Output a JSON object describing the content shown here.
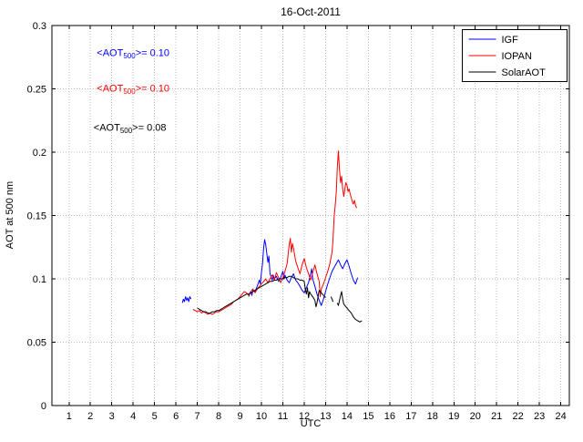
{
  "chart_data": {
    "type": "line",
    "title": "16-Oct-2011",
    "xlabel": "UTC",
    "ylabel": "AOT at 500 nm",
    "xlim": [
      0.2,
      24.4
    ],
    "ylim": [
      0,
      0.3
    ],
    "x_ticks": [
      1,
      2,
      3,
      4,
      5,
      6,
      7,
      8,
      9,
      10,
      11,
      12,
      13,
      14,
      15,
      16,
      17,
      18,
      19,
      20,
      21,
      22,
      23,
      24
    ],
    "y_ticks": [
      0,
      0.05,
      0.1,
      0.15,
      0.2,
      0.25,
      0.3
    ],
    "y_tick_labels": [
      "0",
      "0.05",
      "0.1",
      "0.15",
      "0.2",
      "0.25",
      "0.3"
    ],
    "grid": true,
    "legend_position": "top-right",
    "colors": {
      "igf": "#0000ff",
      "iopan": "#ff0000",
      "solaraot": "#000000",
      "axis": "#000000",
      "grid": "#b8b8b8"
    },
    "series": [
      {
        "name": "IGF",
        "color": "#0000ff",
        "points": [
          [
            6.3,
            0.081
          ],
          [
            6.35,
            0.084
          ],
          [
            6.4,
            0.082
          ],
          [
            6.45,
            0.086
          ],
          [
            6.5,
            0.083
          ],
          [
            6.55,
            0.085
          ],
          [
            6.6,
            0.082
          ],
          [
            6.65,
            0.086
          ],
          [
            6.7,
            0.084
          ],
          null,
          [
            9.4,
            0.086
          ],
          [
            9.5,
            0.09
          ],
          [
            9.55,
            0.087
          ],
          [
            9.6,
            0.091
          ],
          [
            9.7,
            0.09
          ],
          [
            9.8,
            0.094
          ],
          [
            9.9,
            0.099
          ],
          [
            9.95,
            0.096
          ],
          [
            10.0,
            0.105
          ],
          [
            10.05,
            0.112
          ],
          [
            10.1,
            0.124
          ],
          [
            10.15,
            0.131
          ],
          [
            10.2,
            0.127
          ],
          [
            10.25,
            0.12
          ],
          [
            10.3,
            0.113
          ],
          [
            10.35,
            0.118
          ],
          [
            10.4,
            0.104
          ],
          [
            10.5,
            0.099
          ],
          [
            10.55,
            0.103
          ],
          [
            10.6,
            0.1
          ],
          [
            10.7,
            0.102
          ],
          [
            10.8,
            0.098
          ],
          [
            10.9,
            0.101
          ],
          [
            11.0,
            0.106
          ],
          [
            11.05,
            0.1
          ],
          [
            11.1,
            0.103
          ],
          [
            11.2,
            0.099
          ],
          [
            11.3,
            0.097
          ],
          [
            11.4,
            0.101
          ],
          [
            11.5,
            0.104
          ],
          [
            11.6,
            0.099
          ],
          [
            11.7,
            0.097
          ],
          [
            11.8,
            0.094
          ],
          [
            11.9,
            0.091
          ],
          [
            12.0,
            0.089
          ],
          [
            12.1,
            0.093
          ],
          [
            12.2,
            0.097
          ],
          [
            12.3,
            0.104
          ],
          [
            12.35,
            0.108
          ],
          [
            12.4,
            0.1
          ],
          [
            12.5,
            0.094
          ],
          [
            12.6,
            0.088
          ],
          [
            12.7,
            0.083
          ],
          [
            12.8,
            0.079
          ],
          [
            12.9,
            0.084
          ],
          [
            13.0,
            0.09
          ],
          [
            13.1,
            0.096
          ],
          [
            13.2,
            0.101
          ],
          [
            13.3,
            0.106
          ],
          [
            13.4,
            0.109
          ],
          [
            13.5,
            0.112
          ],
          [
            13.6,
            0.115
          ],
          [
            13.7,
            0.111
          ],
          [
            13.8,
            0.108
          ],
          [
            13.9,
            0.112
          ],
          [
            14.0,
            0.115
          ],
          [
            14.1,
            0.11
          ],
          [
            14.2,
            0.104
          ],
          [
            14.3,
            0.099
          ],
          [
            14.4,
            0.096
          ],
          [
            14.5,
            0.101
          ]
        ]
      },
      {
        "name": "IOPAN",
        "color": "#ff0000",
        "points": [
          [
            6.8,
            0.076
          ],
          [
            6.9,
            0.075
          ],
          [
            7.0,
            0.074
          ],
          [
            7.1,
            0.075
          ],
          [
            7.2,
            0.073
          ],
          [
            7.3,
            0.074
          ],
          [
            7.4,
            0.073
          ],
          [
            7.5,
            0.072
          ],
          [
            7.6,
            0.073
          ],
          [
            7.7,
            0.072
          ],
          [
            7.8,
            0.073
          ],
          [
            7.9,
            0.074
          ],
          [
            8.0,
            0.074
          ],
          [
            8.1,
            0.075
          ],
          [
            8.2,
            0.076
          ],
          [
            8.3,
            0.077
          ],
          [
            8.4,
            0.078
          ],
          [
            8.5,
            0.079
          ],
          [
            8.6,
            0.08
          ],
          [
            8.7,
            0.082
          ],
          [
            8.8,
            0.083
          ],
          [
            8.9,
            0.084
          ],
          [
            9.0,
            0.086
          ],
          [
            9.1,
            0.088
          ],
          [
            9.2,
            0.09
          ],
          [
            9.3,
            0.089
          ],
          [
            9.4,
            0.087
          ],
          [
            9.5,
            0.09
          ],
          [
            9.6,
            0.092
          ],
          [
            9.7,
            0.089
          ],
          [
            9.8,
            0.092
          ],
          [
            9.9,
            0.094
          ],
          [
            10.0,
            0.096
          ],
          [
            10.1,
            0.098
          ],
          [
            10.2,
            0.1
          ],
          [
            10.3,
            0.097
          ],
          [
            10.4,
            0.1
          ],
          [
            10.5,
            0.103
          ],
          [
            10.6,
            0.099
          ],
          [
            10.7,
            0.105
          ],
          [
            10.8,
            0.101
          ],
          [
            10.9,
            0.097
          ],
          [
            11.0,
            0.101
          ],
          [
            11.1,
            0.106
          ],
          [
            11.2,
            0.112
          ],
          [
            11.25,
            0.12
          ],
          [
            11.3,
            0.127
          ],
          [
            11.35,
            0.132
          ],
          [
            11.4,
            0.121
          ],
          [
            11.45,
            0.128
          ],
          [
            11.5,
            0.124
          ],
          [
            11.6,
            0.114
          ],
          [
            11.7,
            0.109
          ],
          [
            11.8,
            0.104
          ],
          [
            11.9,
            0.111
          ],
          [
            12.0,
            0.116
          ],
          [
            12.1,
            0.109
          ],
          [
            12.2,
            0.104
          ],
          [
            12.3,
            0.099
          ],
          [
            12.4,
            0.105
          ],
          [
            12.5,
            0.111
          ],
          [
            12.6,
            0.104
          ],
          [
            12.7,
            0.098
          ],
          [
            12.75,
            0.086
          ],
          [
            12.8,
            0.092
          ],
          [
            12.9,
            0.096
          ],
          [
            13.0,
            0.101
          ],
          [
            13.1,
            0.106
          ],
          [
            13.2,
            0.112
          ],
          [
            13.3,
            0.121
          ],
          [
            13.35,
            0.131
          ],
          [
            13.4,
            0.149
          ],
          [
            13.45,
            0.158
          ],
          [
            13.5,
            0.169
          ],
          [
            13.55,
            0.188
          ],
          [
            13.6,
            0.201
          ],
          [
            13.65,
            0.186
          ],
          [
            13.7,
            0.176
          ],
          [
            13.75,
            0.181
          ],
          [
            13.8,
            0.171
          ],
          [
            13.85,
            0.165
          ],
          [
            13.9,
            0.171
          ],
          [
            13.95,
            0.176
          ],
          [
            14.0,
            0.174
          ],
          [
            14.05,
            0.169
          ],
          [
            14.1,
            0.171
          ],
          [
            14.15,
            0.167
          ],
          [
            14.2,
            0.164
          ],
          [
            14.25,
            0.161
          ],
          [
            14.3,
            0.159
          ],
          [
            14.35,
            0.162
          ],
          [
            14.4,
            0.158
          ],
          [
            14.45,
            0.156
          ]
        ]
      },
      {
        "name": "SolarAOT",
        "color": "#000000",
        "points": [
          [
            7.0,
            0.077
          ],
          [
            7.1,
            0.076
          ],
          [
            7.2,
            0.075
          ],
          [
            7.3,
            0.074
          ],
          [
            7.4,
            0.074
          ],
          [
            7.5,
            0.073
          ],
          [
            7.6,
            0.073
          ],
          [
            7.7,
            0.074
          ],
          [
            7.8,
            0.074
          ],
          [
            7.9,
            0.075
          ],
          [
            8.0,
            0.075
          ],
          [
            8.1,
            0.076
          ],
          [
            8.2,
            0.077
          ],
          [
            8.3,
            0.078
          ],
          [
            8.4,
            0.079
          ],
          [
            8.5,
            0.08
          ],
          [
            8.6,
            0.081
          ],
          [
            8.7,
            0.082
          ],
          [
            8.8,
            0.083
          ],
          [
            8.9,
            0.084
          ],
          [
            9.0,
            0.085
          ],
          [
            9.1,
            0.086
          ],
          [
            9.2,
            0.087
          ],
          [
            9.3,
            0.088
          ],
          [
            9.4,
            0.088
          ],
          [
            9.5,
            0.089
          ],
          [
            9.6,
            0.09
          ],
          [
            9.7,
            0.091
          ],
          [
            9.8,
            0.092
          ],
          [
            9.9,
            0.093
          ],
          [
            10.0,
            0.094
          ],
          [
            10.1,
            0.095
          ],
          [
            10.2,
            0.096
          ],
          [
            10.3,
            0.097
          ],
          [
            10.4,
            0.098
          ],
          [
            10.5,
            0.098
          ],
          [
            10.6,
            0.099
          ],
          [
            10.7,
            0.099
          ],
          [
            10.8,
            0.1
          ],
          [
            10.9,
            0.1
          ],
          [
            11.0,
            0.1
          ],
          [
            11.1,
            0.101
          ],
          [
            11.2,
            0.101
          ],
          [
            11.3,
            0.102
          ],
          [
            11.4,
            0.102
          ],
          [
            11.5,
            0.101
          ],
          [
            11.6,
            0.1
          ],
          [
            11.7,
            0.1
          ],
          [
            11.8,
            0.099
          ],
          [
            11.9,
            0.099
          ],
          [
            12.0,
            0.098
          ],
          [
            12.05,
            0.092
          ],
          [
            12.1,
            0.088
          ],
          [
            12.15,
            0.093
          ],
          [
            12.2,
            0.085
          ],
          [
            12.25,
            0.09
          ],
          [
            12.3,
            0.088
          ],
          [
            12.4,
            0.086
          ],
          [
            12.5,
            0.083
          ],
          [
            12.55,
            0.078
          ],
          [
            12.6,
            0.081
          ],
          [
            12.7,
            0.091
          ],
          [
            12.8,
            0.089
          ],
          [
            12.9,
            0.087
          ],
          [
            13.0,
            0.085
          ],
          null,
          [
            13.25,
            0.086
          ],
          [
            13.3,
            0.084
          ],
          [
            13.35,
            0.082
          ],
          null,
          [
            13.55,
            0.081
          ],
          [
            13.6,
            0.079
          ],
          [
            13.7,
            0.087
          ],
          [
            13.75,
            0.09
          ],
          [
            13.8,
            0.084
          ],
          [
            13.85,
            0.08
          ],
          [
            13.9,
            0.079
          ],
          [
            14.0,
            0.077
          ],
          [
            14.1,
            0.075
          ],
          [
            14.2,
            0.073
          ],
          [
            14.3,
            0.07
          ],
          [
            14.4,
            0.068
          ],
          [
            14.5,
            0.067
          ],
          [
            14.6,
            0.066
          ],
          [
            14.7,
            0.067
          ]
        ]
      }
    ],
    "annotations": [
      {
        "pre": "<AOT",
        "sub": "500",
        "post": ">= 0.10",
        "color": "#0000ff",
        "x": 2.3,
        "y": 0.276
      },
      {
        "pre": "<AOT",
        "sub": "500",
        "post": ">= 0.10",
        "color": "#ff0000",
        "x": 2.3,
        "y": 0.248
      },
      {
        "pre": "<AOT",
        "sub": "500",
        "post": ">= 0.08",
        "color": "#000000",
        "x": 2.15,
        "y": 0.217
      }
    ],
    "legend": {
      "entries": [
        "IGF",
        "IOPAN",
        "SolarAOT"
      ]
    }
  }
}
